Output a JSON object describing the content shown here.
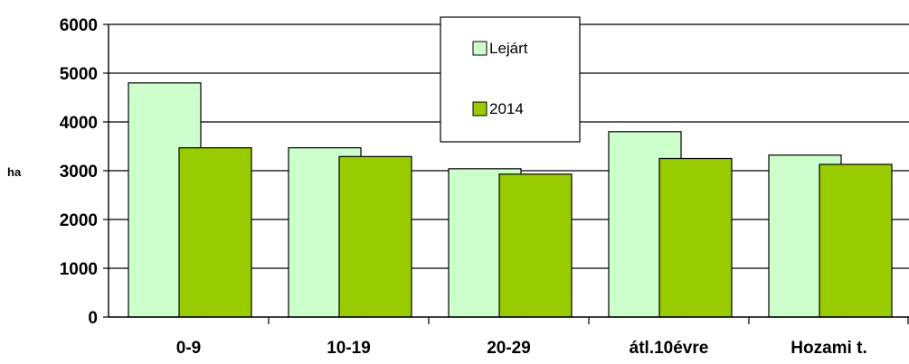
{
  "chart_data": {
    "type": "bar",
    "ylabel": "ha",
    "ylim": [
      0,
      6000
    ],
    "yticks": [
      0,
      1000,
      2000,
      3000,
      4000,
      5000,
      6000
    ],
    "grid": true,
    "legend_position": "top-center",
    "categories": [
      "0-9",
      "10-19",
      "20-29",
      "átl.10évre",
      "Hozami t."
    ],
    "series": [
      {
        "name": "Lejárt",
        "color": "#ccffcc",
        "values": [
          4800,
          3470,
          3040,
          3800,
          3320
        ]
      },
      {
        "name": "2014",
        "color": "#99cc00",
        "values": [
          3470,
          3290,
          2930,
          3250,
          3130
        ]
      }
    ]
  }
}
